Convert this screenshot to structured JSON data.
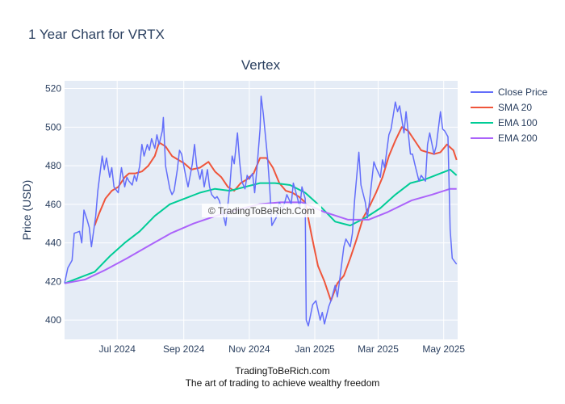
{
  "page_title": "1 Year Chart for VRTX",
  "footer_line1": "TradingToBeRich.com",
  "footer_line2": "The art of trading to achieve wealthy freedom",
  "watermark": "© TradingToBeRich.Com",
  "chart_data": {
    "type": "line",
    "title": "Vertex",
    "xlabel": "",
    "ylabel": "Price (USD)",
    "ylim": [
      390,
      524
    ],
    "x_range": [
      "2024-05-13",
      "2025-05-14"
    ],
    "y_ticks": [
      400,
      420,
      440,
      460,
      480,
      500,
      520
    ],
    "x_ticks": [
      {
        "date": "2024-07-01",
        "label": "Jul 2024"
      },
      {
        "date": "2024-09-01",
        "label": "Sep 2024"
      },
      {
        "date": "2024-11-01",
        "label": "Nov 2024"
      },
      {
        "date": "2025-01-01",
        "label": "Jan 2025"
      },
      {
        "date": "2025-03-01",
        "label": "Mar 2025"
      },
      {
        "date": "2025-05-01",
        "label": "May 2025"
      }
    ],
    "grid": true,
    "legend_position": "top-right",
    "series": [
      {
        "name": "Close Price",
        "color": "#636efa",
        "points": [
          [
            "2024-05-13",
            419
          ],
          [
            "2024-05-16",
            427
          ],
          [
            "2024-05-20",
            431
          ],
          [
            "2024-05-22",
            445
          ],
          [
            "2024-05-27",
            446
          ],
          [
            "2024-05-29",
            440
          ],
          [
            "2024-05-31",
            457
          ],
          [
            "2024-06-03",
            452
          ],
          [
            "2024-06-05",
            448
          ],
          [
            "2024-06-07",
            438
          ],
          [
            "2024-06-11",
            454
          ],
          [
            "2024-06-13",
            467
          ],
          [
            "2024-06-17",
            485
          ],
          [
            "2024-06-19",
            478
          ],
          [
            "2024-06-21",
            484
          ],
          [
            "2024-06-24",
            474
          ],
          [
            "2024-06-26",
            479
          ],
          [
            "2024-06-28",
            469
          ],
          [
            "2024-07-02",
            466
          ],
          [
            "2024-07-05",
            479
          ],
          [
            "2024-07-08",
            469
          ],
          [
            "2024-07-10",
            474
          ],
          [
            "2024-07-12",
            472
          ],
          [
            "2024-07-15",
            470
          ],
          [
            "2024-07-17",
            475
          ],
          [
            "2024-07-19",
            472
          ],
          [
            "2024-07-22",
            480
          ],
          [
            "2024-07-24",
            491
          ],
          [
            "2024-07-26",
            485
          ],
          [
            "2024-07-29",
            491
          ],
          [
            "2024-07-31",
            488
          ],
          [
            "2024-08-02",
            494
          ],
          [
            "2024-08-05",
            489
          ],
          [
            "2024-08-07",
            496
          ],
          [
            "2024-08-09",
            491
          ],
          [
            "2024-08-12",
            498
          ],
          [
            "2024-08-13",
            505
          ],
          [
            "2024-08-15",
            480
          ],
          [
            "2024-08-19",
            468
          ],
          [
            "2024-08-21",
            465
          ],
          [
            "2024-08-23",
            467
          ],
          [
            "2024-08-26",
            478
          ],
          [
            "2024-08-28",
            488
          ],
          [
            "2024-08-30",
            486
          ],
          [
            "2024-09-03",
            474
          ],
          [
            "2024-09-05",
            469
          ],
          [
            "2024-09-09",
            481
          ],
          [
            "2024-09-11",
            491
          ],
          [
            "2024-09-13",
            480
          ],
          [
            "2024-09-16",
            473
          ],
          [
            "2024-09-18",
            478
          ],
          [
            "2024-09-20",
            469
          ],
          [
            "2024-09-23",
            478
          ],
          [
            "2024-09-25",
            469
          ],
          [
            "2024-09-27",
            465
          ],
          [
            "2024-09-30",
            463
          ],
          [
            "2024-10-02",
            464
          ],
          [
            "2024-10-04",
            462
          ],
          [
            "2024-10-08",
            454
          ],
          [
            "2024-10-10",
            449
          ],
          [
            "2024-10-14",
            470
          ],
          [
            "2024-10-16",
            485
          ],
          [
            "2024-10-18",
            481
          ],
          [
            "2024-10-21",
            497
          ],
          [
            "2024-10-23",
            482
          ],
          [
            "2024-10-25",
            472
          ],
          [
            "2024-10-28",
            468
          ],
          [
            "2024-10-30",
            475
          ],
          [
            "2024-11-01",
            473
          ],
          [
            "2024-11-04",
            476
          ],
          [
            "2024-11-06",
            466
          ],
          [
            "2024-11-08",
            478
          ],
          [
            "2024-11-11",
            499
          ],
          [
            "2024-11-12",
            516
          ],
          [
            "2024-11-14",
            507
          ],
          [
            "2024-11-18",
            484
          ],
          [
            "2024-11-20",
            469
          ],
          [
            "2024-11-22",
            449
          ],
          [
            "2024-11-26",
            453
          ],
          [
            "2024-11-29",
            461
          ],
          [
            "2024-12-02",
            458
          ],
          [
            "2024-12-04",
            461
          ],
          [
            "2024-12-06",
            465
          ],
          [
            "2024-12-10",
            460
          ],
          [
            "2024-12-12",
            471
          ],
          [
            "2024-12-16",
            463
          ],
          [
            "2024-12-18",
            458
          ],
          [
            "2024-12-20",
            469
          ],
          [
            "2024-12-23",
            463
          ],
          [
            "2024-12-24",
            400
          ],
          [
            "2024-12-26",
            397
          ],
          [
            "2024-12-30",
            408
          ],
          [
            "2025-01-02",
            410
          ],
          [
            "2025-01-06",
            400
          ],
          [
            "2025-01-08",
            404
          ],
          [
            "2025-01-10",
            398
          ],
          [
            "2025-01-14",
            407
          ],
          [
            "2025-01-16",
            410
          ],
          [
            "2025-01-20",
            418
          ],
          [
            "2025-01-22",
            412
          ],
          [
            "2025-01-24",
            420
          ],
          [
            "2025-01-28",
            438
          ],
          [
            "2025-01-30",
            442
          ],
          [
            "2025-02-03",
            438
          ],
          [
            "2025-02-05",
            445
          ],
          [
            "2025-02-07",
            462
          ],
          [
            "2025-02-11",
            487
          ],
          [
            "2025-02-13",
            470
          ],
          [
            "2025-02-17",
            461
          ],
          [
            "2025-02-19",
            453
          ],
          [
            "2025-02-21",
            462
          ],
          [
            "2025-02-25",
            482
          ],
          [
            "2025-02-27",
            479
          ],
          [
            "2025-03-03",
            474
          ],
          [
            "2025-03-05",
            483
          ],
          [
            "2025-03-07",
            479
          ],
          [
            "2025-03-11",
            496
          ],
          [
            "2025-03-13",
            499
          ],
          [
            "2025-03-17",
            513
          ],
          [
            "2025-03-19",
            508
          ],
          [
            "2025-03-21",
            511
          ],
          [
            "2025-03-25",
            497
          ],
          [
            "2025-03-27",
            508
          ],
          [
            "2025-03-31",
            486
          ],
          [
            "2025-04-02",
            486
          ],
          [
            "2025-04-04",
            481
          ],
          [
            "2025-04-08",
            472
          ],
          [
            "2025-04-10",
            475
          ],
          [
            "2025-04-14",
            472
          ],
          [
            "2025-04-16",
            491
          ],
          [
            "2025-04-18",
            497
          ],
          [
            "2025-04-22",
            486
          ],
          [
            "2025-04-24",
            490
          ],
          [
            "2025-04-28",
            508
          ],
          [
            "2025-04-30",
            499
          ],
          [
            "2025-05-02",
            498
          ],
          [
            "2025-05-05",
            495
          ],
          [
            "2025-05-07",
            447
          ],
          [
            "2025-05-09",
            432
          ],
          [
            "2025-05-13",
            429
          ]
        ]
      },
      {
        "name": "SMA 20",
        "color": "#ef553b",
        "points": [
          [
            "2024-06-10",
            449
          ],
          [
            "2024-06-14",
            455
          ],
          [
            "2024-06-20",
            463
          ],
          [
            "2024-06-26",
            467
          ],
          [
            "2024-07-02",
            469
          ],
          [
            "2024-07-08",
            474
          ],
          [
            "2024-07-12",
            476
          ],
          [
            "2024-07-18",
            476
          ],
          [
            "2024-07-24",
            477
          ],
          [
            "2024-07-30",
            480
          ],
          [
            "2024-08-05",
            485
          ],
          [
            "2024-08-09",
            492
          ],
          [
            "2024-08-15",
            490
          ],
          [
            "2024-08-21",
            485
          ],
          [
            "2024-08-27",
            483
          ],
          [
            "2024-09-02",
            481
          ],
          [
            "2024-09-08",
            478
          ],
          [
            "2024-09-16",
            479
          ],
          [
            "2024-09-24",
            482
          ],
          [
            "2024-09-30",
            477
          ],
          [
            "2024-10-06",
            474
          ],
          [
            "2024-10-12",
            469
          ],
          [
            "2024-10-18",
            467
          ],
          [
            "2024-10-24",
            471
          ],
          [
            "2024-10-30",
            473
          ],
          [
            "2024-11-05",
            476
          ],
          [
            "2024-11-11",
            484
          ],
          [
            "2024-11-17",
            484
          ],
          [
            "2024-11-23",
            479
          ],
          [
            "2024-11-29",
            471
          ],
          [
            "2024-12-05",
            467
          ],
          [
            "2024-12-11",
            466
          ],
          [
            "2024-12-17",
            464
          ],
          [
            "2024-12-23",
            461
          ],
          [
            "2024-12-29",
            444
          ],
          [
            "2025-01-04",
            428
          ],
          [
            "2025-01-10",
            420
          ],
          [
            "2025-01-16",
            410
          ],
          [
            "2025-01-22",
            419
          ],
          [
            "2025-01-28",
            423
          ],
          [
            "2025-02-03",
            432
          ],
          [
            "2025-02-09",
            442
          ],
          [
            "2025-02-15",
            453
          ],
          [
            "2025-02-21",
            459
          ],
          [
            "2025-02-27",
            466
          ],
          [
            "2025-03-05",
            474
          ],
          [
            "2025-03-11",
            485
          ],
          [
            "2025-03-17",
            493
          ],
          [
            "2025-03-23",
            500
          ],
          [
            "2025-03-29",
            498
          ],
          [
            "2025-04-04",
            493
          ],
          [
            "2025-04-10",
            488
          ],
          [
            "2025-04-16",
            487
          ],
          [
            "2025-04-22",
            486
          ],
          [
            "2025-04-28",
            487
          ],
          [
            "2025-05-04",
            491
          ],
          [
            "2025-05-10",
            488
          ],
          [
            "2025-05-13",
            483
          ]
        ]
      },
      {
        "name": "EMA 100",
        "color": "#00cc96",
        "points": [
          [
            "2024-05-13",
            419
          ],
          [
            "2024-05-27",
            422
          ],
          [
            "2024-06-10",
            425
          ],
          [
            "2024-06-24",
            433
          ],
          [
            "2024-07-08",
            440
          ],
          [
            "2024-07-22",
            446
          ],
          [
            "2024-08-05",
            454
          ],
          [
            "2024-08-19",
            460
          ],
          [
            "2024-09-02",
            463
          ],
          [
            "2024-09-16",
            466
          ],
          [
            "2024-09-30",
            468
          ],
          [
            "2024-10-14",
            467
          ],
          [
            "2024-10-28",
            469
          ],
          [
            "2024-11-11",
            471
          ],
          [
            "2024-11-25",
            471
          ],
          [
            "2024-12-09",
            470
          ],
          [
            "2024-12-23",
            466
          ],
          [
            "2025-01-06",
            459
          ],
          [
            "2025-01-20",
            451
          ],
          [
            "2025-02-03",
            449
          ],
          [
            "2025-02-17",
            453
          ],
          [
            "2025-03-03",
            458
          ],
          [
            "2025-03-17",
            465
          ],
          [
            "2025-03-31",
            471
          ],
          [
            "2025-04-14",
            473
          ],
          [
            "2025-04-28",
            476
          ],
          [
            "2025-05-07",
            478
          ],
          [
            "2025-05-13",
            475
          ]
        ]
      },
      {
        "name": "EMA 200",
        "color": "#ab63fa",
        "points": [
          [
            "2024-05-13",
            419
          ],
          [
            "2024-06-01",
            421
          ],
          [
            "2024-06-20",
            426
          ],
          [
            "2024-07-10",
            432
          ],
          [
            "2024-08-01",
            439
          ],
          [
            "2024-08-20",
            445
          ],
          [
            "2024-09-10",
            450
          ],
          [
            "2024-10-01",
            454
          ],
          [
            "2024-10-20",
            457
          ],
          [
            "2024-11-10",
            460
          ],
          [
            "2024-11-30",
            461
          ],
          [
            "2024-12-20",
            461
          ],
          [
            "2025-01-10",
            456
          ],
          [
            "2025-02-01",
            452
          ],
          [
            "2025-02-20",
            452
          ],
          [
            "2025-03-10",
            456
          ],
          [
            "2025-04-01",
            462
          ],
          [
            "2025-04-20",
            465
          ],
          [
            "2025-05-07",
            468
          ],
          [
            "2025-05-13",
            468
          ]
        ]
      }
    ]
  }
}
